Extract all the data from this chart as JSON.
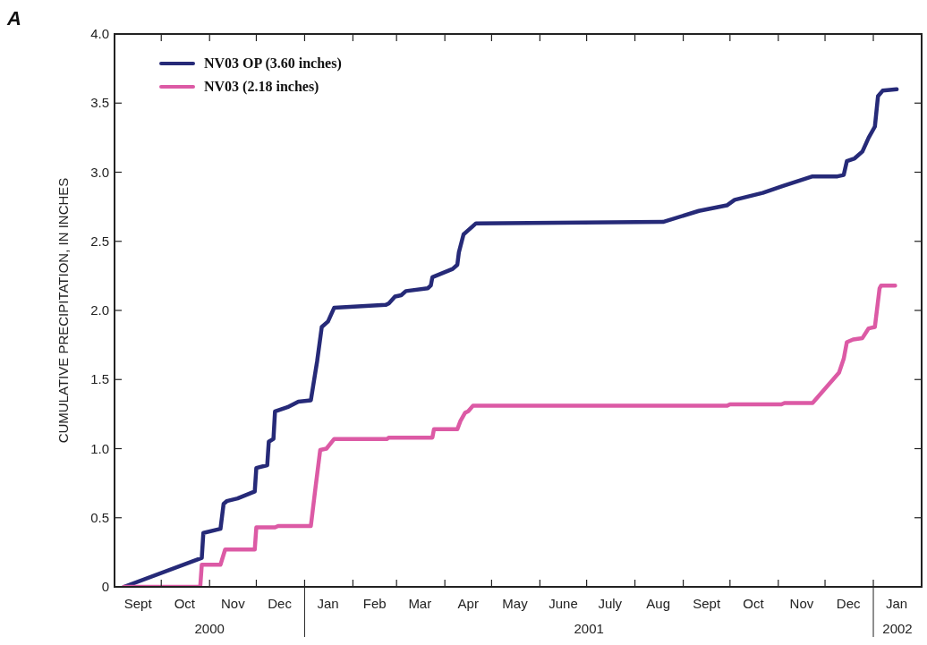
{
  "chart_data": {
    "type": "line",
    "title": "A",
    "ylabel": "CUMULATIVE PRECIPITATION, IN INCHES",
    "xlim": [
      "2000-09-01",
      "2002-02-01"
    ],
    "ylim": [
      0,
      4
    ],
    "yticks": [
      0,
      {
        "value": 0.5,
        "label": "0.5"
      },
      {
        "value": 1,
        "label": "1.0"
      },
      {
        "value": 1.5,
        "label": "1.5"
      },
      {
        "value": 2,
        "label": "2.0"
      },
      {
        "value": 2.5,
        "label": "2.5"
      },
      {
        "value": 3,
        "label": "3.0"
      },
      {
        "value": 3.5,
        "label": "3.5"
      },
      {
        "value": 4,
        "label": "4.0"
      }
    ],
    "xticks": [
      {
        "value": "2000-09-16",
        "label": "Sept"
      },
      {
        "value": "2000-10-01",
        "label": null
      },
      {
        "value": "2000-10-16",
        "label": "Oct"
      },
      {
        "value": "2000-11-01",
        "label": null
      },
      {
        "value": "2000-11-16",
        "label": "Nov"
      },
      {
        "value": "2000-12-01",
        "label": null
      },
      {
        "value": "2000-12-16",
        "label": "Dec"
      },
      {
        "value": "2001-01-01",
        "label": null
      },
      {
        "value": "2001-01-16",
        "label": "Jan"
      },
      {
        "value": "2001-02-01",
        "label": null
      },
      {
        "value": "2001-02-15",
        "label": "Feb"
      },
      {
        "value": "2001-03-01",
        "label": null
      },
      {
        "value": "2001-03-16",
        "label": "Mar"
      },
      {
        "value": "2001-04-01",
        "label": null
      },
      {
        "value": "2001-04-16",
        "label": "Apr"
      },
      {
        "value": "2001-05-01",
        "label": null
      },
      {
        "value": "2001-05-16",
        "label": "May"
      },
      {
        "value": "2001-06-01",
        "label": null
      },
      {
        "value": "2001-06-16",
        "label": "June"
      },
      {
        "value": "2001-07-01",
        "label": null
      },
      {
        "value": "2001-07-16",
        "label": "July"
      },
      {
        "value": "2001-08-01",
        "label": null
      },
      {
        "value": "2001-08-16",
        "label": "Aug"
      },
      {
        "value": "2001-09-01",
        "label": null
      },
      {
        "value": "2001-09-16",
        "label": "Sept"
      },
      {
        "value": "2001-10-01",
        "label": null
      },
      {
        "value": "2001-10-16",
        "label": "Oct"
      },
      {
        "value": "2001-11-01",
        "label": null
      },
      {
        "value": "2001-11-16",
        "label": "Nov"
      },
      {
        "value": "2001-12-01",
        "label": null
      },
      {
        "value": "2001-12-16",
        "label": "Dec"
      },
      {
        "value": "2002-01-01",
        "label": null
      },
      {
        "value": "2002-01-16",
        "label": "Jan"
      }
    ],
    "annotations": [
      "2000",
      "2001",
      "2002"
    ],
    "legend": "top left",
    "grid": false,
    "marker": "none",
    "line_style": "solid",
    "series": [
      {
        "name": "NV03 OP (3.60 inches)",
        "color": "#262a78",
        "x": [
          "2000-09-07",
          "2000-10-27",
          "2000-10-28",
          "2000-11-08",
          "2000-11-10",
          "2000-11-12",
          "2000-11-19",
          "2000-11-30",
          "2000-12-01",
          "2000-12-08",
          "2000-12-09",
          "2000-12-12",
          "2000-12-13",
          "2000-12-21",
          "2000-12-28",
          "2001-01-05",
          "2001-01-09",
          "2001-01-12",
          "2001-01-16",
          "2001-01-20",
          "2001-02-22",
          "2001-02-24",
          "2001-02-28",
          "2001-03-04",
          "2001-03-07",
          "2001-03-21",
          "2001-03-23",
          "2001-03-24",
          "2001-04-06",
          "2001-04-09",
          "2001-04-10",
          "2001-04-13",
          "2001-04-16",
          "2001-04-21",
          "2001-08-19",
          "2001-09-11",
          "2001-09-29",
          "2001-10-04",
          "2001-10-22",
          "2001-11-04",
          "2001-11-23",
          "2001-12-09",
          "2001-12-13",
          "2001-12-15",
          "2001-12-20",
          "2001-12-25",
          "2001-12-29",
          "2002-01-02",
          "2002-01-04",
          "2002-01-07",
          "2002-01-16"
        ],
        "values": [
          0,
          0.21,
          0.39,
          0.42,
          0.6,
          0.62,
          0.64,
          0.69,
          0.86,
          0.88,
          1.05,
          1.07,
          1.27,
          1.3,
          1.34,
          1.35,
          1.63,
          1.88,
          1.92,
          2.02,
          2.04,
          2.05,
          2.1,
          2.11,
          2.14,
          2.16,
          2.18,
          2.24,
          2.3,
          2.33,
          2.42,
          2.55,
          2.58,
          2.63,
          2.64,
          2.72,
          2.76,
          2.8,
          2.85,
          2.9,
          2.97,
          2.97,
          2.98,
          3.08,
          3.1,
          3.15,
          3.25,
          3.33,
          3.55,
          3.59,
          3.6
        ]
      },
      {
        "name": "NV03 (2.18 inches)",
        "color": "#dc5aa5",
        "x": [
          "2000-09-07",
          "2000-10-26",
          "2000-10-27",
          "2000-11-08",
          "2000-11-11",
          "2000-11-30",
          "2000-12-01",
          "2000-12-13",
          "2000-12-15",
          "2001-01-05",
          "2001-01-08",
          "2001-01-11",
          "2001-01-15",
          "2001-01-20",
          "2001-02-23",
          "2001-02-24",
          "2001-03-24",
          "2001-03-25",
          "2001-04-09",
          "2001-04-11",
          "2001-04-14",
          "2001-04-16",
          "2001-04-19",
          "2001-09-29",
          "2001-10-01",
          "2001-11-03",
          "2001-11-05",
          "2001-11-23",
          "2001-12-10",
          "2001-12-13",
          "2001-12-15",
          "2001-12-19",
          "2001-12-25",
          "2001-12-29",
          "2002-01-02",
          "2002-01-05",
          "2002-01-06",
          "2002-01-15"
        ],
        "values": [
          0,
          0,
          0.16,
          0.16,
          0.27,
          0.27,
          0.43,
          0.43,
          0.44,
          0.44,
          0.72,
          0.99,
          1.0,
          1.07,
          1.07,
          1.08,
          1.08,
          1.14,
          1.14,
          1.2,
          1.26,
          1.27,
          1.31,
          1.31,
          1.32,
          1.32,
          1.33,
          1.33,
          1.55,
          1.65,
          1.77,
          1.79,
          1.8,
          1.87,
          1.88,
          2.16,
          2.18,
          2.18
        ]
      }
    ]
  }
}
